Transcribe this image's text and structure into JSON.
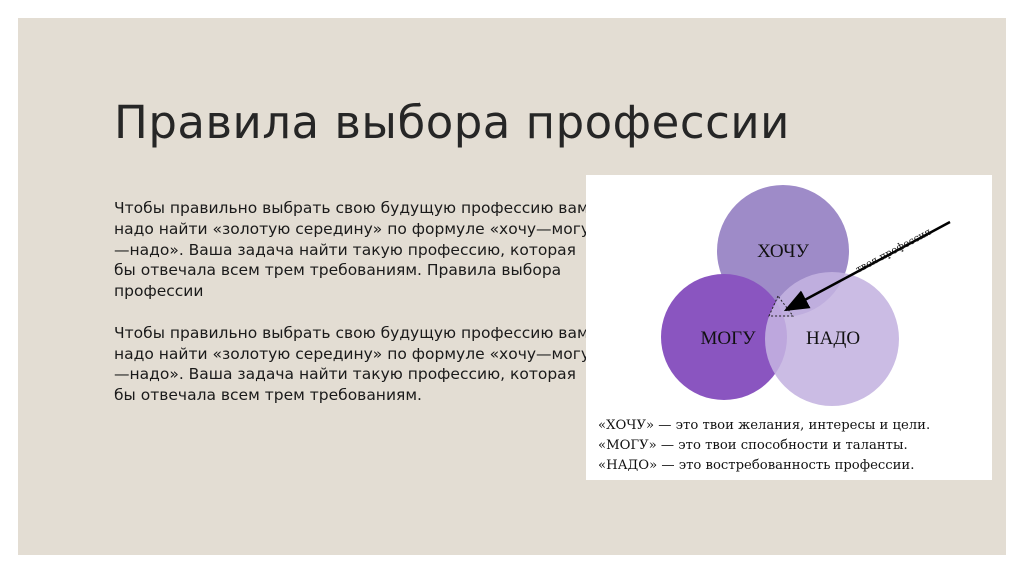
{
  "slide": {
    "title": "Правила выбора профессии",
    "paragraphs": [
      "Чтобы правильно выбрать свою будущую профессию вам надо найти «золотую середину» по формуле «хочу—могу—надо». Ваша задача найти такую профессию, которая бы отвечала всем трем требованиям. Правила выбора профессии",
      "Чтобы правильно выбрать свою будущую профессию вам надо найти «золотую середину» по формуле «хочу—могу—надо». Ваша задача найти такую профессию, которая бы отвечала всем трем требованиям."
    ]
  },
  "diagram": {
    "circles": [
      {
        "label": "ХОЧУ",
        "color": "#9e8bc8"
      },
      {
        "label": "МОГУ",
        "color": "#8a55c0"
      },
      {
        "label": "НАДО",
        "color": "#c4b3e0"
      }
    ],
    "arrow_label": "твоя профессия",
    "legend": [
      "«ХОЧУ» — это твои желания, интересы и цели.",
      "«МОГУ» — это твои способности и таланты.",
      "«НАДО» — это востребованность профессии."
    ]
  },
  "colors": {
    "background": "#e3ddd3",
    "text": "#262626"
  }
}
